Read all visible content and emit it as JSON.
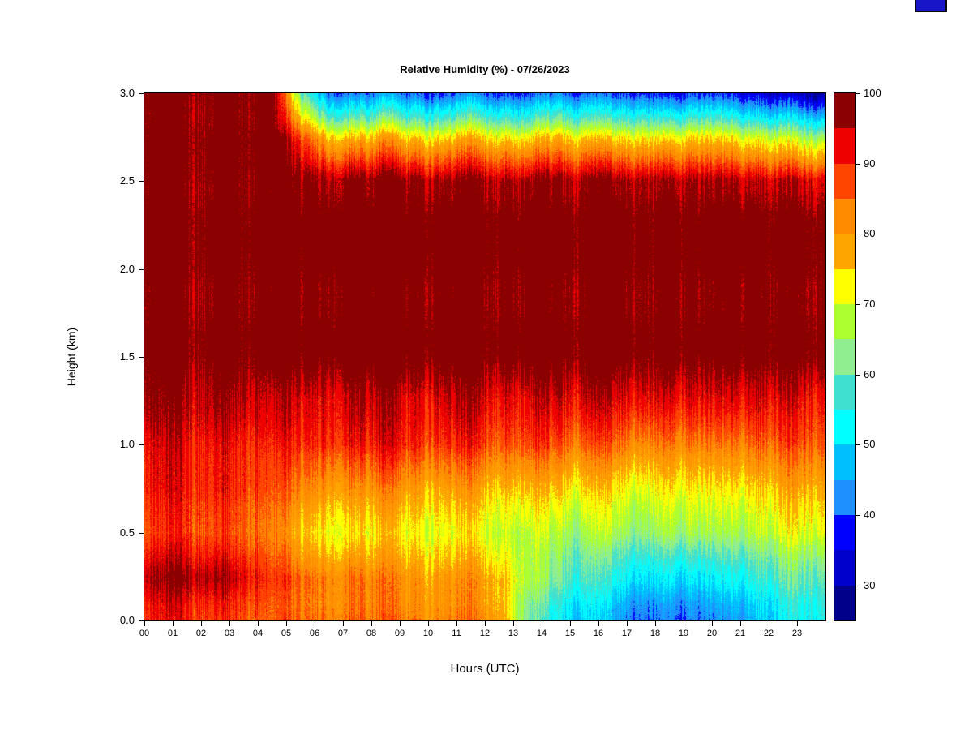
{
  "page": {
    "background": "#ffffff"
  },
  "artifact": {
    "color": "#1616c8"
  },
  "chart_data": {
    "type": "heatmap",
    "title": "Relative Humidity (%) - 07/26/2023",
    "xlabel": "Hours (UTC)",
    "ylabel": "Height (km)",
    "x_range_hours": [
      0,
      24
    ],
    "y_range_km": [
      0,
      3
    ],
    "x_tick_labels": [
      "00",
      "01",
      "02",
      "03",
      "04",
      "05",
      "06",
      "07",
      "08",
      "09",
      "10",
      "11",
      "12",
      "13",
      "14",
      "15",
      "16",
      "17",
      "18",
      "19",
      "20",
      "21",
      "22",
      "23"
    ],
    "y_tick_values": [
      0.0,
      0.5,
      1.0,
      1.5,
      2.0,
      2.5,
      3.0
    ],
    "y_tick_labels": [
      "0.0",
      "0.5",
      "1.0",
      "1.5",
      "2.0",
      "2.5",
      "3.0"
    ],
    "layout_hints": {
      "grid": false,
      "legend_position": "right-colorbar",
      "vertical_streak_noise_pct": 6
    },
    "colorbar": {
      "min": 25,
      "max": 100,
      "bin_size": 5,
      "tick_values": [
        30,
        40,
        50,
        60,
        70,
        80,
        90,
        100
      ],
      "tick_labels": [
        "30",
        "40",
        "50",
        "60",
        "70",
        "80",
        "90",
        "100"
      ],
      "colors_low_to_high": [
        "#00008B",
        "#0000CD",
        "#0000FF",
        "#1E90FF",
        "#00BFFF",
        "#00FFFF",
        "#40E0D0",
        "#90EE90",
        "#ADFF2F",
        "#FFFF00",
        "#FFA500",
        "#FF8C00",
        "#FF4500",
        "#EE0000",
        "#8B0000"
      ]
    },
    "grid": {
      "hours": [
        0,
        1,
        2,
        3,
        4,
        5,
        6,
        7,
        8,
        9,
        10,
        11,
        12,
        13,
        14,
        15,
        16,
        17,
        18,
        19,
        20,
        21,
        22,
        23
      ],
      "heights_km": [
        0.0,
        0.25,
        0.5,
        0.75,
        1.0,
        1.25,
        1.5,
        1.75,
        2.0,
        2.25,
        2.5,
        2.75,
        3.0
      ],
      "rh_values_by_height_ascending": [
        [
          91,
          92,
          90,
          89,
          87,
          86,
          85,
          85,
          84,
          84,
          83,
          84,
          82,
          62,
          53,
          50,
          45,
          43,
          42,
          43,
          44,
          48,
          52,
          56
        ],
        [
          95,
          97,
          96,
          93,
          88,
          84,
          82,
          81,
          80,
          79,
          78,
          79,
          77,
          66,
          60,
          57,
          53,
          51,
          50,
          51,
          52,
          55,
          58,
          60
        ],
        [
          88,
          90,
          88,
          87,
          84,
          76,
          73,
          72,
          73,
          72,
          71,
          72,
          70,
          68,
          67,
          66,
          66,
          65,
          66,
          67,
          66,
          68,
          70,
          72
        ],
        [
          92,
          93,
          92,
          91,
          88,
          84,
          82,
          80,
          82,
          80,
          79,
          80,
          78,
          77,
          76,
          75,
          74,
          73,
          74,
          75,
          74,
          76,
          78,
          80
        ],
        [
          93,
          94,
          93,
          92,
          91,
          90,
          91,
          90,
          91,
          90,
          89,
          90,
          88,
          88,
          87,
          86,
          85,
          84,
          84,
          85,
          84,
          86,
          87,
          88
        ],
        [
          97,
          96,
          97,
          96,
          94,
          93,
          93,
          94,
          93,
          92,
          93,
          94,
          93,
          92,
          93,
          93,
          92,
          93,
          92,
          93,
          92,
          93,
          92,
          92
        ],
        [
          100,
          100,
          100,
          100,
          100,
          100,
          100,
          100,
          100,
          100,
          100,
          100,
          100,
          100,
          100,
          100,
          100,
          100,
          100,
          100,
          100,
          100,
          100,
          100
        ],
        [
          100,
          100,
          100,
          100,
          100,
          100,
          100,
          100,
          100,
          100,
          100,
          100,
          100,
          100,
          100,
          100,
          100,
          100,
          100,
          100,
          100,
          100,
          100,
          100
        ],
        [
          100,
          100,
          100,
          100,
          100,
          100,
          100,
          100,
          100,
          100,
          100,
          100,
          100,
          100,
          100,
          100,
          100,
          100,
          100,
          100,
          100,
          100,
          100,
          100
        ],
        [
          100,
          100,
          100,
          100,
          100,
          100,
          100,
          100,
          100,
          100,
          100,
          100,
          100,
          100,
          100,
          100,
          100,
          100,
          100,
          100,
          100,
          100,
          100,
          100
        ],
        [
          100,
          100,
          100,
          100,
          100,
          99,
          98,
          98,
          98,
          98,
          97,
          98,
          98,
          97,
          98,
          98,
          97,
          98,
          97,
          98,
          97,
          96,
          95,
          95
        ],
        [
          100,
          100,
          100,
          100,
          100,
          88,
          76,
          74,
          77,
          74,
          73,
          76,
          74,
          72,
          76,
          74,
          72,
          74,
          72,
          75,
          73,
          70,
          68,
          66
        ],
        [
          100,
          100,
          100,
          100,
          100,
          62,
          42,
          40,
          42,
          40,
          38,
          42,
          40,
          38,
          42,
          40,
          38,
          40,
          36,
          40,
          38,
          34,
          32,
          30
        ]
      ]
    }
  }
}
